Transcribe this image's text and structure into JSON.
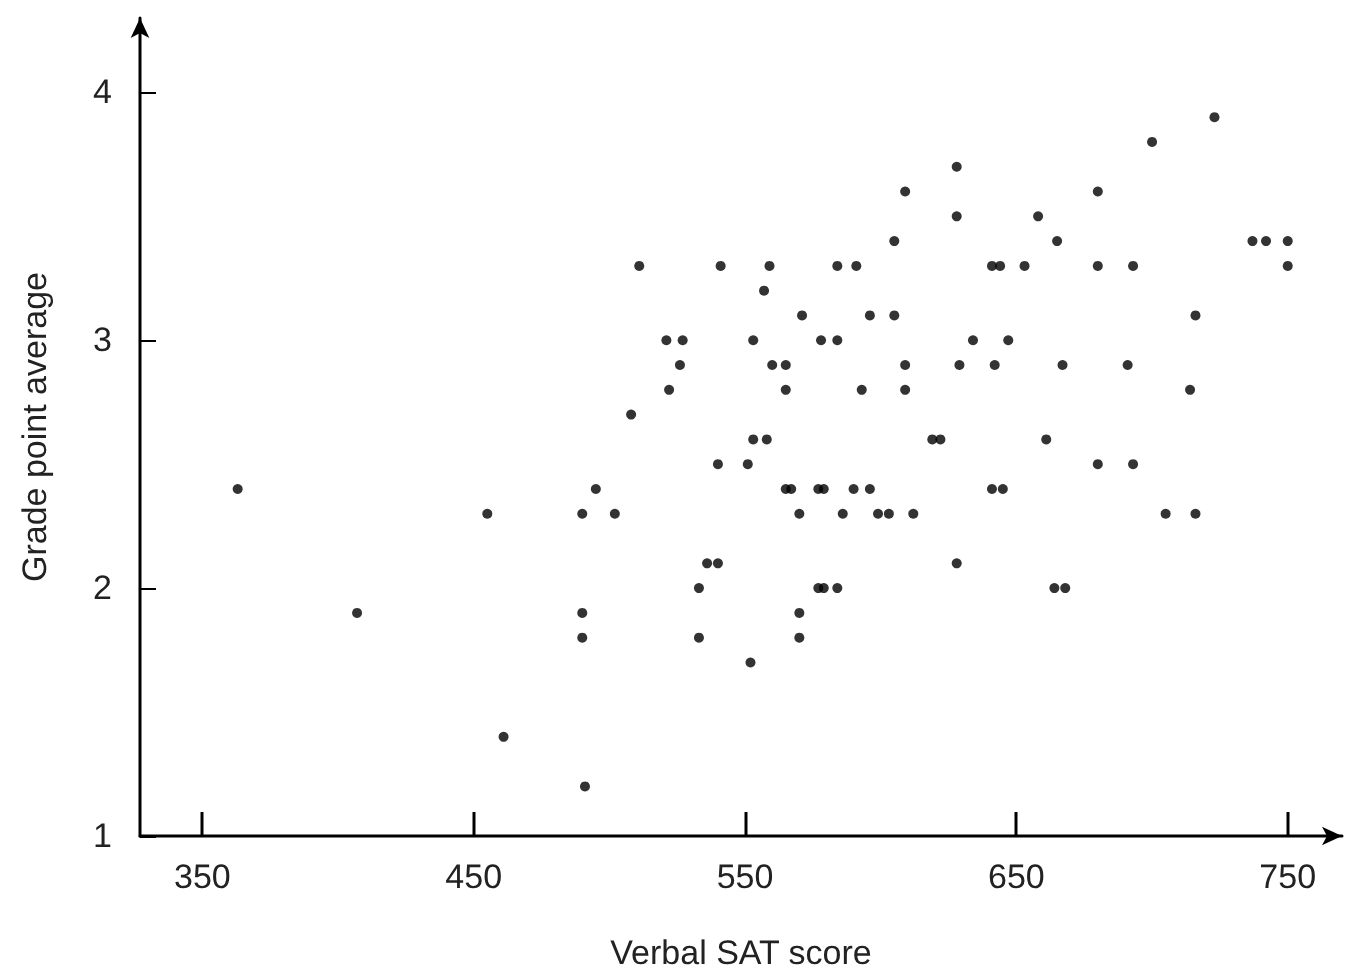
{
  "chart_data": {
    "type": "scatter",
    "xlabel": "Verbal SAT score",
    "ylabel": "Grade point average",
    "xlim": [
      327,
      770
    ],
    "ylim": [
      1,
      4.3
    ],
    "xticks": [
      350,
      450,
      550,
      650,
      750
    ],
    "yticks": [
      1,
      2,
      3,
      4
    ],
    "grid": false,
    "marker": "circle",
    "series": [
      {
        "color": "#000000",
        "x": [
          363,
          407,
          455,
          461,
          490,
          490,
          490,
          491,
          495,
          502,
          508,
          511,
          521,
          527,
          526,
          522,
          533,
          533,
          536,
          540,
          540,
          541,
          551,
          552,
          553,
          553,
          558,
          557,
          559,
          560,
          565,
          565,
          565,
          567,
          570,
          570,
          570,
          571,
          577,
          579,
          577,
          579,
          584,
          578,
          584,
          584,
          591,
          586,
          590,
          596,
          593,
          596,
          599,
          603,
          605,
          605,
          609,
          609,
          609,
          612,
          619,
          622,
          628,
          628,
          629,
          628,
          634,
          641,
          644,
          642,
          641,
          645,
          647,
          653,
          658,
          661,
          665,
          664,
          668,
          667,
          680,
          680,
          680,
          691,
          693,
          693,
          700,
          705,
          714,
          716,
          716,
          723,
          737,
          742,
          750,
          750
        ],
        "values": [
          2.4,
          1.9,
          2.3,
          1.4,
          2.3,
          1.9,
          1.8,
          1.2,
          2.4,
          2.3,
          2.7,
          3.3,
          3.0,
          3.0,
          2.9,
          2.8,
          2.0,
          1.8,
          2.1,
          2.1,
          2.5,
          3.3,
          2.5,
          1.7,
          3.0,
          2.6,
          2.6,
          3.2,
          3.3,
          2.9,
          2.9,
          2.8,
          2.4,
          2.4,
          2.3,
          1.9,
          1.8,
          3.1,
          2.4,
          2.4,
          2.0,
          2.0,
          2.0,
          3.0,
          3.0,
          3.3,
          3.3,
          2.3,
          2.4,
          2.4,
          2.8,
          3.1,
          2.3,
          2.3,
          3.1,
          3.4,
          3.6,
          2.9,
          2.8,
          2.3,
          2.6,
          2.6,
          3.7,
          3.5,
          2.9,
          2.1,
          3.0,
          3.3,
          3.3,
          2.9,
          2.4,
          2.4,
          3.0,
          3.3,
          3.5,
          2.6,
          3.4,
          2.0,
          2.0,
          2.9,
          3.6,
          3.3,
          2.5,
          2.9,
          3.3,
          2.5,
          3.8,
          2.3,
          2.8,
          3.1,
          2.3,
          3.9,
          3.4,
          3.4,
          3.4,
          3.3
        ]
      }
    ]
  }
}
